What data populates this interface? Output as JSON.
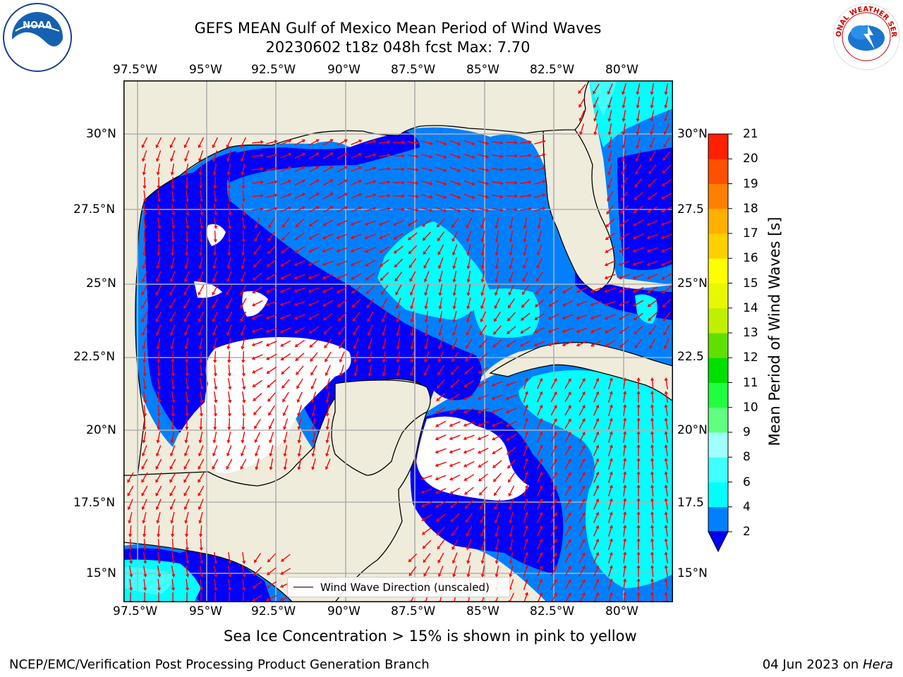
{
  "title_line1": "GEFS MEAN Gulf of Mexico Mean Period of Wind Waves",
  "title_line2": "20230602 t18z 048h fcst   Max: 7.70",
  "top_x_ticks": [
    "97.5°W",
    "95°W",
    "92.5°W",
    "90°W",
    "87.5°W",
    "85°W",
    "82.5°W",
    "80°W"
  ],
  "bottom_x_ticks": [
    "97.5°W",
    "95°W",
    "92.5°W",
    "90°W",
    "87.5°W",
    "85°W",
    "82.5°W",
    "80°W"
  ],
  "left_y_ticks": [
    "30°N",
    "27.5°N",
    "25°N",
    "22.5°N",
    "20°N",
    "17.5°N",
    "15°N"
  ],
  "right_y_ticks": [
    "30°N",
    "27.5",
    "25°N",
    "22.5",
    "20°N",
    "17.5",
    "15°N"
  ],
  "legend_label": "Wind Wave Direction (unscaled)",
  "colorbar": {
    "label": "Mean Period of Wind Waves [s]",
    "ticks": [
      "21",
      "20",
      "19",
      "18",
      "17",
      "16",
      "15",
      "14",
      "13",
      "12",
      "11",
      "10",
      "9",
      "8",
      "6",
      "4",
      "2"
    ],
    "colors": [
      "#0000ff",
      "#0080ff",
      "#00ffff",
      "#40ffff",
      "#a0ffff",
      "#60ff80",
      "#20ff40",
      "#00e000",
      "#60e000",
      "#c0f000",
      "#e8f800",
      "#ffff00",
      "#ffd000",
      "#ffb000",
      "#ff8000",
      "#ff5000",
      "#ff2000",
      "#ff0000"
    ]
  },
  "sea_ice_note": "Sea Ice Concentration > 15% is shown in pink to yellow",
  "footer_left": "NCEP/EMC/Verification Post Processing Product Generation Branch",
  "footer_date": "04 Jun 2023 on ",
  "footer_machine": "Hera",
  "logos": {
    "left": "NOAA",
    "right": "NATIONAL WEATHER SERVICE"
  },
  "colors": {
    "land": "#efecdc",
    "grid": "#b0b0b0",
    "arrow": "#ff0000",
    "white_region": "#ffffff"
  }
}
